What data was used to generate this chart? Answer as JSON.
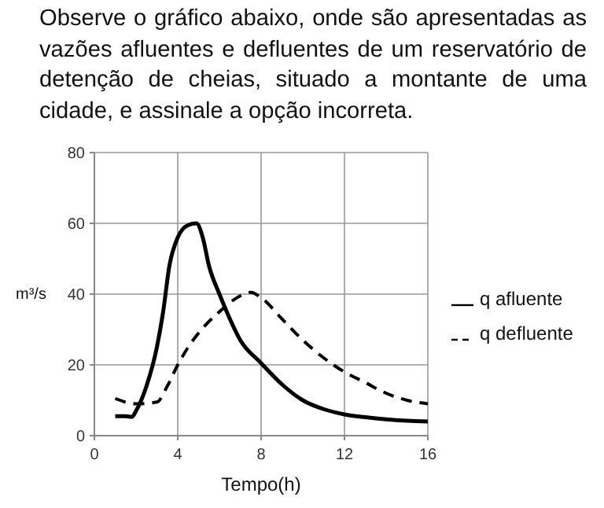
{
  "chart_data": {
    "type": "line",
    "title": "Observe o gráfico abaixo, onde são apresentadas as vazões afluentes e defluentes de um reservatório de detenção de cheias, situado a montante de uma cidade, e assinale a opção incorreta.",
    "xlabel": "Tempo(h)",
    "ylabel": "m³/s",
    "xlim": [
      0,
      16
    ],
    "xticks": [
      0,
      4,
      8,
      12,
      16
    ],
    "ylim": [
      0,
      80
    ],
    "yticks": [
      0,
      20,
      40,
      60,
      80
    ],
    "grid": true,
    "legend": "right",
    "series": [
      {
        "name": "q afluente",
        "color": "#000000",
        "line_style": "solid",
        "x": [
          1,
          1.5,
          1.8,
          2,
          2.5,
          3,
          3.3,
          3.6,
          4,
          4.5,
          4.9,
          5.2,
          5.5,
          6,
          6.5,
          7,
          8,
          9,
          10,
          11,
          12,
          13,
          14,
          15,
          16
        ],
        "values": [
          5.5,
          5.5,
          5.3,
          7,
          14,
          25,
          35,
          48,
          56,
          59.5,
          60,
          56,
          48,
          40,
          33,
          27,
          20.5,
          14.5,
          10,
          7.5,
          6,
          5.2,
          4.6,
          4.2,
          4
        ]
      },
      {
        "name": "q defluente",
        "color": "#000000",
        "line_style": "dashed",
        "x": [
          1,
          2,
          3,
          3.5,
          4,
          4.5,
          5,
          6,
          7,
          7.5,
          8,
          9,
          10,
          11,
          12,
          13,
          14,
          15,
          16
        ],
        "values": [
          10.5,
          9,
          9.5,
          14,
          20,
          25,
          29,
          35,
          39.5,
          40.5,
          39,
          33,
          27,
          22,
          18,
          15,
          12,
          10,
          9
        ]
      }
    ]
  }
}
